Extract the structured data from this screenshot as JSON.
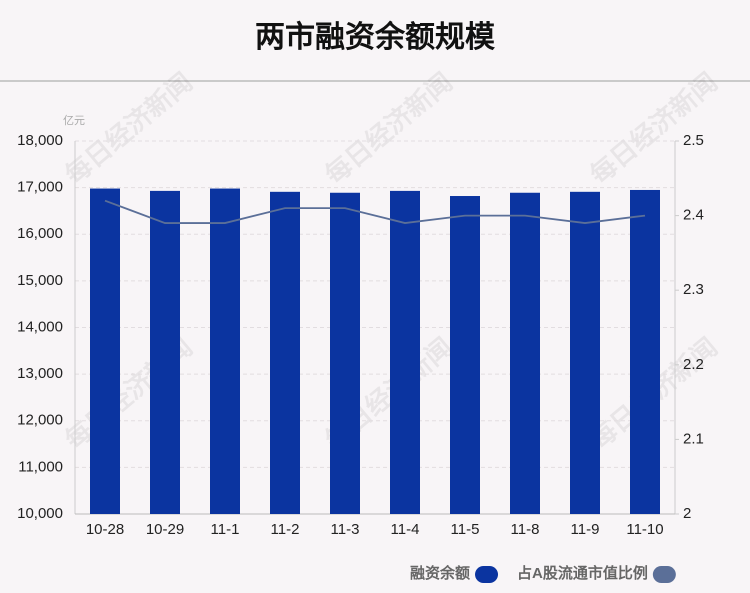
{
  "chart_data": {
    "type": "bar",
    "title": "两市融资余额规模",
    "y_unit": "亿元",
    "watermark": "每日经济新闻",
    "categories": [
      "10-28",
      "10-29",
      "11-1",
      "11-2",
      "11-3",
      "11-4",
      "11-5",
      "11-8",
      "11-9",
      "11-10"
    ],
    "series": [
      {
        "name": "融资余额",
        "type": "bar",
        "color": "#0b34a0",
        "values": [
          16980,
          16930,
          16980,
          16910,
          16890,
          16930,
          16820,
          16890,
          16910,
          16950
        ]
      },
      {
        "name": "占A股流通市值比例",
        "type": "line",
        "axis": "y2",
        "color": "#5b6f98",
        "values": [
          2.42,
          2.39,
          2.39,
          2.41,
          2.41,
          2.39,
          2.4,
          2.4,
          2.39,
          2.4
        ]
      }
    ],
    "ylim": [
      10000,
      18000
    ],
    "yticks": [
      {
        "value": 10000,
        "label": "10,000"
      },
      {
        "value": 11000,
        "label": "11,000"
      },
      {
        "value": 12000,
        "label": "12,000"
      },
      {
        "value": 13000,
        "label": "13,000"
      },
      {
        "value": 14000,
        "label": "14,000"
      },
      {
        "value": 15000,
        "label": "15,000"
      },
      {
        "value": 16000,
        "label": "16,000"
      },
      {
        "value": 17000,
        "label": "17,000"
      },
      {
        "value": 18000,
        "label": "18,000"
      }
    ],
    "y2lim": [
      2,
      2.5
    ],
    "y2ticks": [
      2,
      2.1,
      2.2,
      2.3,
      2.4,
      2.5
    ],
    "grid": true
  }
}
